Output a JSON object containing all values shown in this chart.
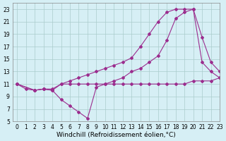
{
  "line1_x": [
    0,
    1,
    2,
    3,
    4,
    5,
    6,
    7,
    8,
    9,
    10,
    11,
    12,
    13,
    14,
    15,
    16,
    17,
    18,
    19,
    20,
    21,
    22,
    23
  ],
  "line1_y": [
    11,
    10.2,
    10.0,
    10.2,
    10.0,
    11.0,
    11.0,
    11.0,
    11.0,
    11.0,
    11.0,
    11.0,
    11.0,
    11.0,
    11.0,
    11.0,
    11.0,
    11.0,
    11.0,
    11.0,
    11.5,
    11.5,
    11.5,
    12.0
  ],
  "line2_x": [
    0,
    2,
    3,
    4,
    5,
    6,
    7,
    8,
    9,
    10,
    11,
    12,
    13,
    14,
    15,
    16,
    17,
    18,
    19,
    20,
    21,
    22,
    23
  ],
  "line2_y": [
    11,
    10.0,
    10.2,
    10.2,
    11.0,
    11.5,
    12.0,
    12.5,
    13.0,
    13.5,
    14.0,
    14.5,
    15.2,
    17.0,
    19.0,
    21.0,
    22.5,
    23.0,
    23.0,
    23.0,
    18.5,
    14.5,
    13.0
  ],
  "line3_x": [
    0,
    2,
    3,
    4,
    5,
    6,
    7,
    8,
    9,
    10,
    11,
    12,
    13,
    14,
    15,
    16,
    17,
    18,
    19,
    20,
    21,
    22,
    23
  ],
  "line3_y": [
    11,
    10.0,
    10.2,
    10.0,
    8.5,
    7.5,
    6.5,
    5.5,
    10.5,
    11.0,
    11.5,
    12.0,
    13.0,
    13.5,
    14.5,
    15.5,
    18.0,
    21.5,
    22.5,
    23.0,
    14.5,
    13.0,
    12.0
  ],
  "color": "#9b2d8e",
  "bg_color": "#d6eff5",
  "grid_color": "#aacccc",
  "xlabel": "Windchill (Refroidissement éolien,°C)",
  "xlim": [
    -0.5,
    23
  ],
  "ylim": [
    5,
    24
  ],
  "xticks": [
    0,
    1,
    2,
    3,
    4,
    5,
    6,
    7,
    8,
    9,
    10,
    11,
    12,
    13,
    14,
    15,
    16,
    17,
    18,
    19,
    20,
    21,
    22,
    23
  ],
  "yticks": [
    5,
    7,
    9,
    11,
    13,
    15,
    17,
    19,
    21,
    23
  ],
  "tick_fontsize": 5.5,
  "xlabel_fontsize": 6.5
}
